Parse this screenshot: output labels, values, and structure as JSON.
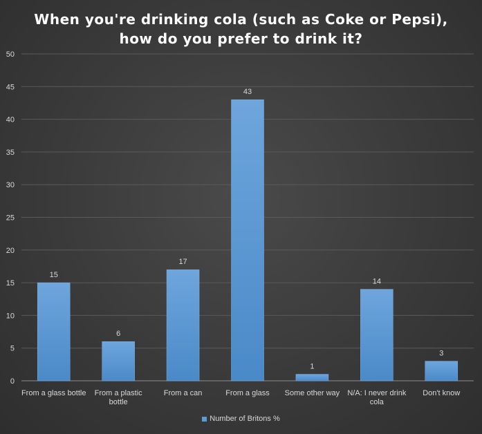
{
  "chart_data": {
    "type": "bar",
    "title_lines": [
      "When you're drinking  cola (such as Coke or Pepsi),",
      "how do you prefer to drink  it?"
    ],
    "categories": [
      [
        "From a glass bottle"
      ],
      [
        "From a plastic",
        "bottle"
      ],
      [
        "From a can"
      ],
      [
        "From a glass"
      ],
      [
        "Some other way"
      ],
      [
        "N/A: I never drink",
        "cola"
      ],
      [
        "Don't know"
      ]
    ],
    "series": [
      {
        "name": "Number of Britons %",
        "values": [
          15,
          6,
          17,
          43,
          1,
          14,
          3
        ],
        "color": "#5b9bd5"
      }
    ],
    "ylim": [
      0,
      50
    ],
    "yticks": [
      0,
      5,
      10,
      15,
      20,
      25,
      30,
      35,
      40,
      45,
      50
    ],
    "grid": true,
    "legend_position": "bottom",
    "data_labels": true
  }
}
